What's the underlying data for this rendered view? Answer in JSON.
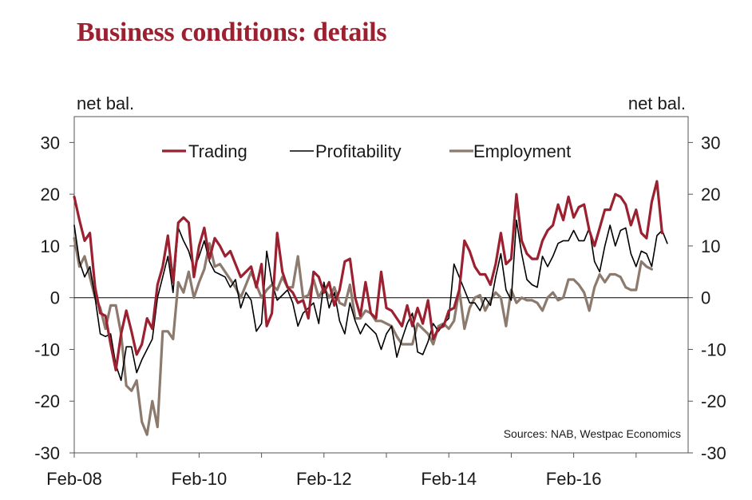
{
  "title": "Business conditions: details",
  "chart_data": {
    "type": "line",
    "ylabel_left": "net bal.",
    "ylabel_right": "net bal.",
    "ylim": [
      -30,
      35
    ],
    "yticks": [
      -30,
      -20,
      -10,
      0,
      10,
      20,
      30
    ],
    "x_ticks": [
      {
        "label": "Feb-08",
        "t": 0
      },
      {
        "label": "Feb-10",
        "t": 24
      },
      {
        "label": "Feb-12",
        "t": 48
      },
      {
        "label": "Feb-14",
        "t": 72
      },
      {
        "label": "Feb-16",
        "t": 96
      }
    ],
    "x_start": "Feb-08",
    "x_end": "Mar-17",
    "source": "Sources: NAB, Westpac Economics",
    "legend_position": "top",
    "series": [
      {
        "name": "Trading",
        "color": "#9b2131",
        "stroke_width": 3.2,
        "values": [
          19.5,
          15,
          11,
          12.5,
          2,
          -3,
          -3.5,
          -9,
          -14,
          -7,
          -2.5,
          -6.5,
          -11,
          -9,
          -4,
          -6,
          2.5,
          6,
          12,
          3,
          14.5,
          15.5,
          14.5,
          4,
          10,
          13.5,
          7.5,
          11.5,
          10,
          8,
          9,
          6.5,
          4,
          5,
          6,
          2,
          6.5,
          -5.5,
          -3,
          12.5,
          5,
          2,
          1,
          -1,
          -0.5,
          -4,
          5,
          4,
          1,
          3,
          -1.5,
          1.5,
          7,
          7.5,
          0,
          -3.5,
          3,
          -3,
          -4,
          5,
          -2,
          -2.5,
          -4,
          -5.5,
          -1.5,
          -5.5,
          -2,
          -5,
          -0.5,
          -8,
          -6,
          -5.5,
          -2.5,
          -2,
          1.5,
          11,
          9,
          6,
          4.5,
          4.5,
          2.5,
          6.5,
          12.5,
          6.5,
          7.5,
          20,
          11,
          8.5,
          7.5,
          7.5,
          11,
          13,
          14,
          18,
          15,
          19.5,
          15.5,
          17.5,
          18,
          13,
          10,
          13.5,
          17,
          17,
          20,
          19.5,
          18,
          14,
          17,
          12.5,
          11.5,
          18.5,
          22.5,
          12.5
        ]
      },
      {
        "name": "Profitability",
        "color": "#000000",
        "stroke_width": 1.6,
        "values": [
          14,
          7,
          4,
          6,
          0,
          -7,
          -7.5,
          -7,
          -13,
          -16,
          -9.5,
          -9.5,
          -14.5,
          -12,
          -10,
          -8,
          0,
          4,
          8,
          1,
          13.5,
          11,
          9,
          5.5,
          8,
          11,
          7,
          5,
          4.5,
          4,
          2,
          3.5,
          -2,
          1,
          -0.5,
          -6.5,
          -5,
          9,
          3,
          -0.5,
          0.5,
          1.5,
          -1,
          -5.5,
          -3,
          -2,
          -1,
          -5,
          3,
          -2,
          1,
          -4.5,
          -7,
          -1,
          -4.5,
          -7,
          -5,
          -6,
          -7,
          -10,
          -7,
          -5.5,
          -11.5,
          -8,
          -5,
          -3,
          -10.5,
          -11,
          -8.5,
          -5,
          -6.5,
          -5,
          -4,
          6.5,
          4,
          1.5,
          -1,
          -1,
          -2.5,
          0,
          -1.5,
          4,
          8.5,
          1.5,
          -0.5,
          15,
          8.5,
          3.5,
          2.5,
          2,
          8,
          6,
          8,
          10.5,
          11,
          11,
          13,
          11,
          11,
          13.5,
          7,
          5,
          10,
          14,
          10,
          13,
          13.5,
          8.5,
          6,
          9,
          8.5,
          6,
          12,
          13,
          10.5
        ]
      },
      {
        "name": "Employment",
        "color": "#8b7a6d",
        "stroke_width": 3.2,
        "values": [
          11.5,
          6,
          8,
          4,
          0,
          -2,
          -6,
          -1.5,
          -1.5,
          -7,
          -17,
          -18,
          -16,
          -24,
          -26.5,
          -20,
          -25,
          -6.5,
          -6.5,
          -8,
          3,
          1,
          5,
          0,
          3,
          5.5,
          10.5,
          6,
          6.5,
          5,
          3.5,
          2,
          0,
          2.5,
          5,
          2.5,
          0,
          1.5,
          2.5,
          1.5,
          4,
          2,
          2,
          8,
          0,
          0.5,
          3.5,
          0,
          2,
          0,
          2,
          -1,
          -1.5,
          2.5,
          -4,
          -4,
          -2.5,
          -3,
          -4.5,
          -4.5,
          -5,
          -5.5,
          -7.5,
          -9,
          -9,
          -9,
          -5,
          -6,
          -7,
          -9,
          -5.5,
          -5,
          -6,
          -4.5,
          1.5,
          -6,
          -2,
          0,
          0.5,
          -2.5,
          -0.5,
          1,
          0,
          -5.5,
          1.5,
          -1,
          0,
          -0.5,
          -0.5,
          -1,
          -2.5,
          0,
          1,
          -0.5,
          0,
          3.5,
          3.5,
          2.5,
          1,
          -2.5,
          2,
          4.5,
          3,
          4.5,
          4.5,
          4,
          2,
          1.5,
          1.5,
          7,
          6,
          5.5
        ]
      }
    ]
  }
}
